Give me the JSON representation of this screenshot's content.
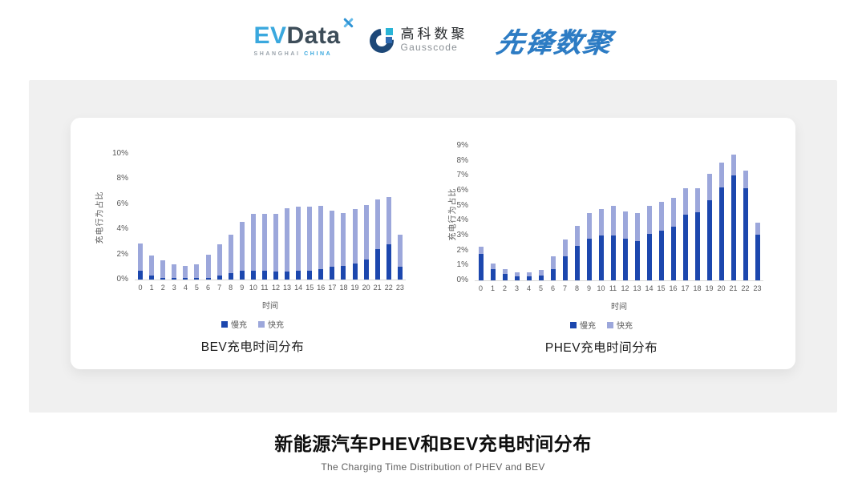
{
  "header": {
    "evdata": {
      "ev": "EV",
      "data": "Data",
      "sub_left": "SHANGHAI",
      "sub_right": "CHINA"
    },
    "gausscode": {
      "name_cn": "高科数聚",
      "name_en": "Gausscode"
    },
    "pioneer": {
      "name": "先锋数聚"
    }
  },
  "chart_data": [
    {
      "type": "bar",
      "stacked": true,
      "title": "BEV充电时间分布",
      "ylabel": "充电行为占比",
      "xlabel": "时间",
      "yunit": "%",
      "ymax": 10,
      "ytick_step": 2,
      "grid": false,
      "legend_position": "bottom",
      "categories": [
        "0",
        "1",
        "2",
        "3",
        "4",
        "5",
        "6",
        "7",
        "8",
        "9",
        "10",
        "11",
        "12",
        "13",
        "14",
        "15",
        "16",
        "17",
        "18",
        "19",
        "20",
        "21",
        "22",
        "23"
      ],
      "series": [
        {
          "name": "慢充",
          "color": "#1c47ae",
          "values": [
            0.7,
            0.35,
            0.15,
            0.1,
            0.1,
            0.1,
            0.15,
            0.35,
            0.5,
            0.7,
            0.7,
            0.7,
            0.65,
            0.65,
            0.7,
            0.7,
            0.85,
            1.0,
            1.1,
            1.3,
            1.6,
            2.4,
            2.8,
            1.0
          ]
        },
        {
          "name": "快充",
          "color": "#9ca7db",
          "values": [
            2.2,
            1.55,
            1.35,
            1.1,
            1.0,
            1.1,
            1.85,
            2.45,
            3.1,
            3.9,
            4.5,
            4.55,
            4.6,
            5.0,
            5.1,
            5.1,
            5.0,
            4.5,
            4.2,
            4.3,
            4.3,
            3.95,
            3.75,
            2.6
          ]
        }
      ]
    },
    {
      "type": "bar",
      "stacked": true,
      "title": "PHEV充电时间分布",
      "ylabel": "充电行为占比",
      "xlabel": "时间",
      "yunit": "%",
      "ymax": 9,
      "ytick_step": 1,
      "grid": false,
      "legend_position": "bottom",
      "categories": [
        "0",
        "1",
        "2",
        "3",
        "4",
        "5",
        "6",
        "7",
        "8",
        "9",
        "10",
        "11",
        "12",
        "13",
        "14",
        "15",
        "16",
        "17",
        "18",
        "19",
        "20",
        "21",
        "22",
        "23"
      ],
      "series": [
        {
          "name": "慢充",
          "color": "#1c47ae",
          "values": [
            1.75,
            0.75,
            0.45,
            0.25,
            0.25,
            0.3,
            0.75,
            1.6,
            2.3,
            2.8,
            3.0,
            3.0,
            2.8,
            2.65,
            3.1,
            3.3,
            3.6,
            4.4,
            4.55,
            5.35,
            6.2,
            7.0,
            6.15,
            3.05
          ]
        },
        {
          "name": "快充",
          "color": "#9ca7db",
          "values": [
            0.5,
            0.4,
            0.3,
            0.3,
            0.3,
            0.4,
            0.85,
            1.15,
            1.35,
            1.7,
            1.75,
            2.0,
            1.8,
            1.85,
            1.9,
            1.95,
            1.9,
            1.75,
            1.6,
            1.75,
            1.7,
            1.4,
            1.2,
            0.8
          ]
        }
      ]
    }
  ],
  "footer": {
    "title": "新能源汽车PHEV和BEV充电时间分布",
    "subtitle": "The Charging Time Distribution of PHEV and BEV"
  }
}
